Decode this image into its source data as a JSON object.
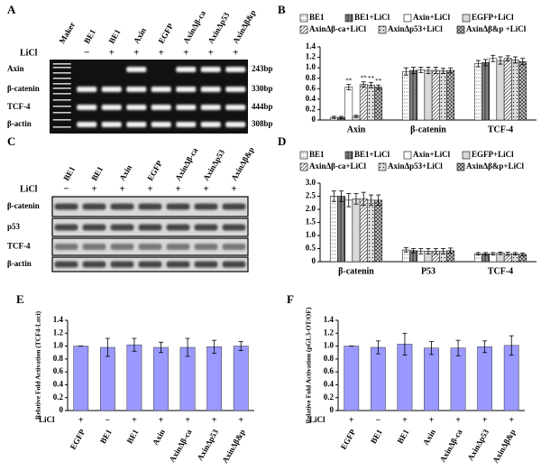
{
  "panel_a": {
    "label": "A",
    "treatment_label": "LiCl",
    "lanes": [
      "Maker",
      "BE1",
      "BE1",
      "Axin",
      "EGFP",
      "AxinΔβ-ca",
      "AxinΔp53",
      "AxinΔβ&p"
    ],
    "treatments": [
      "−",
      "+",
      "+",
      "+",
      "+",
      "+",
      "+"
    ],
    "rows": [
      {
        "name": "Axin",
        "size": "243bp"
      },
      {
        "name": "β-catenin",
        "size": "330bp"
      },
      {
        "name": "TCF-4",
        "size": "444bp"
      },
      {
        "name": "β-actin",
        "size": "308bp"
      }
    ]
  },
  "panel_c": {
    "label": "C",
    "treatment_label": "LiCl",
    "lanes": [
      "BE1",
      "BE1",
      "Axin",
      "EGFP",
      "AxinΔβ-ca",
      "AxinΔp53",
      "AxinΔβ&p"
    ],
    "treatments": [
      "−",
      "+",
      "+",
      "+",
      "+",
      "+",
      "+"
    ],
    "rows": [
      "β-catenin",
      "p53",
      "TCF-4",
      "β-actin"
    ]
  },
  "chart_data": [
    {
      "type": "bar",
      "panel_label": "B",
      "categories": [
        "Axin",
        "β-catenin",
        "TCF-4"
      ],
      "series": [
        {
          "name": "BE1",
          "color": "#ffffff",
          "values": [
            0.05,
            0.93,
            1.08
          ],
          "errors": [
            0.02,
            0.07,
            0.06
          ]
        },
        {
          "name": "BE1+LiCl",
          "color": "#808080",
          "values": [
            0.05,
            0.95,
            1.1
          ],
          "errors": [
            0.02,
            0.06,
            0.06
          ]
        },
        {
          "name": "Axin+LiCl",
          "color": "#ffffff",
          "values": [
            0.63,
            0.96,
            1.18
          ],
          "errors": [
            0.05,
            0.05,
            0.06
          ],
          "significance": [
            "**",
            null,
            null
          ]
        },
        {
          "name": "EGFP+LiCl",
          "color": "#d9d9d9",
          "values": [
            0.07,
            0.95,
            1.14
          ],
          "errors": [
            0.02,
            0.06,
            0.07
          ]
        },
        {
          "name": "AxinΔβ-ca+LiCl",
          "color": "#ffffff",
          "values": [
            0.68,
            0.95,
            1.18
          ],
          "errors": [
            0.05,
            0.06,
            0.05
          ],
          "significance": [
            "**",
            null,
            null
          ]
        },
        {
          "name": "AxinΔp53+LiCl",
          "color": "#d9d9d9",
          "values": [
            0.67,
            0.94,
            1.15
          ],
          "errors": [
            0.05,
            0.05,
            0.06
          ],
          "significance": [
            "**",
            null,
            null
          ]
        },
        {
          "name": "AxinΔβ&p +LiCl",
          "color": "#bfbfbf",
          "values": [
            0.63,
            0.95,
            1.12
          ],
          "errors": [
            0.04,
            0.05,
            0.06
          ],
          "significance": [
            "**",
            null,
            null
          ]
        }
      ],
      "ylim": [
        0,
        1.4
      ],
      "yticks": [
        0,
        0.2,
        0.4,
        0.6,
        0.8,
        {
          "value": 1,
          "label": "1.0"
        },
        1.2,
        1.4
      ]
    },
    {
      "type": "bar",
      "panel_label": "D",
      "categories": [
        "β-catenin",
        "P53",
        "TCF-4"
      ],
      "series": [
        {
          "name": "BE1",
          "color": "#ffffff",
          "values": [
            2.5,
            0.45,
            0.3
          ],
          "errors": [
            0.2,
            0.08,
            0.05
          ]
        },
        {
          "name": "BE1+LiCl",
          "color": "#808080",
          "values": [
            2.5,
            0.42,
            0.3
          ],
          "errors": [
            0.2,
            0.08,
            0.05
          ]
        },
        {
          "name": "Axin+LiCl",
          "color": "#ffffff",
          "values": [
            2.35,
            0.4,
            0.3
          ],
          "errors": [
            0.25,
            0.1,
            0.05
          ]
        },
        {
          "name": "EGFP+LiCl",
          "color": "#d9d9d9",
          "values": [
            2.4,
            0.4,
            0.32
          ],
          "errors": [
            0.2,
            0.1,
            0.05
          ]
        },
        {
          "name": "AxinΔβ-ca+LiCl",
          "color": "#ffffff",
          "values": [
            2.4,
            0.4,
            0.3
          ],
          "errors": [
            0.25,
            0.1,
            0.06
          ]
        },
        {
          "name": "AxinΔp53+LiCl",
          "color": "#d9d9d9",
          "values": [
            2.35,
            0.4,
            0.3
          ],
          "errors": [
            0.2,
            0.1,
            0.05
          ]
        },
        {
          "name": "AxinΔβ&p+LiCl",
          "color": "#bfbfbf",
          "values": [
            2.35,
            0.42,
            0.28
          ],
          "errors": [
            0.2,
            0.1,
            0.05
          ]
        }
      ],
      "ylim": [
        0,
        3
      ],
      "yticks": [
        0,
        0.5,
        {
          "value": 1,
          "label": "1.0"
        },
        1.5,
        {
          "value": 2,
          "label": "2.0"
        },
        2.5,
        {
          "value": 3,
          "label": "3.0"
        }
      ]
    },
    {
      "type": "bar",
      "panel_label": "E",
      "y_label": "Relative Fold Activation (TCF4-Luci)",
      "categories": [
        "EGFP",
        "BE1",
        "BE1",
        "Axin",
        "AxinΔβ-ca",
        "AxinΔp53",
        "AxinΔβ&p"
      ],
      "treatment_label": "LiCl",
      "treatments": [
        "+",
        "−",
        "+",
        "+",
        "+",
        "+",
        "+"
      ],
      "values": [
        1.0,
        0.98,
        1.02,
        0.98,
        0.98,
        0.99,
        1.0
      ],
      "errors": [
        0,
        0.14,
        0.1,
        0.08,
        0.14,
        0.1,
        0.07
      ],
      "color": "#9999ff",
      "ylim": [
        0,
        1.4
      ],
      "yticks": [
        0,
        0.2,
        0.4,
        0.6,
        0.8,
        {
          "value": 1,
          "label": "1.0"
        },
        1.2,
        1.4
      ]
    },
    {
      "type": "bar",
      "panel_label": "F",
      "y_label": "Relative Fold Activation (pGL3-OT/OF)",
      "categories": [
        "EGFP",
        "BE1",
        "BE1",
        "Axin",
        "AxinΔβ-ca",
        "AxinΔp53",
        "AxinΔβ&p"
      ],
      "treatment_label": "LiCl",
      "treatments": [
        "+",
        "−",
        "+",
        "+",
        "+",
        "+",
        "+"
      ],
      "values": [
        1.0,
        0.98,
        1.03,
        0.97,
        0.97,
        0.99,
        1.01
      ],
      "errors": [
        0,
        0.1,
        0.17,
        0.1,
        0.12,
        0.09,
        0.15
      ],
      "color": "#9999ff",
      "ylim": [
        0,
        1.4
      ],
      "yticks": [
        0,
        0.2,
        0.4,
        0.6,
        0.8,
        {
          "value": 1,
          "label": "1.0"
        },
        1.2,
        1.4
      ]
    }
  ]
}
